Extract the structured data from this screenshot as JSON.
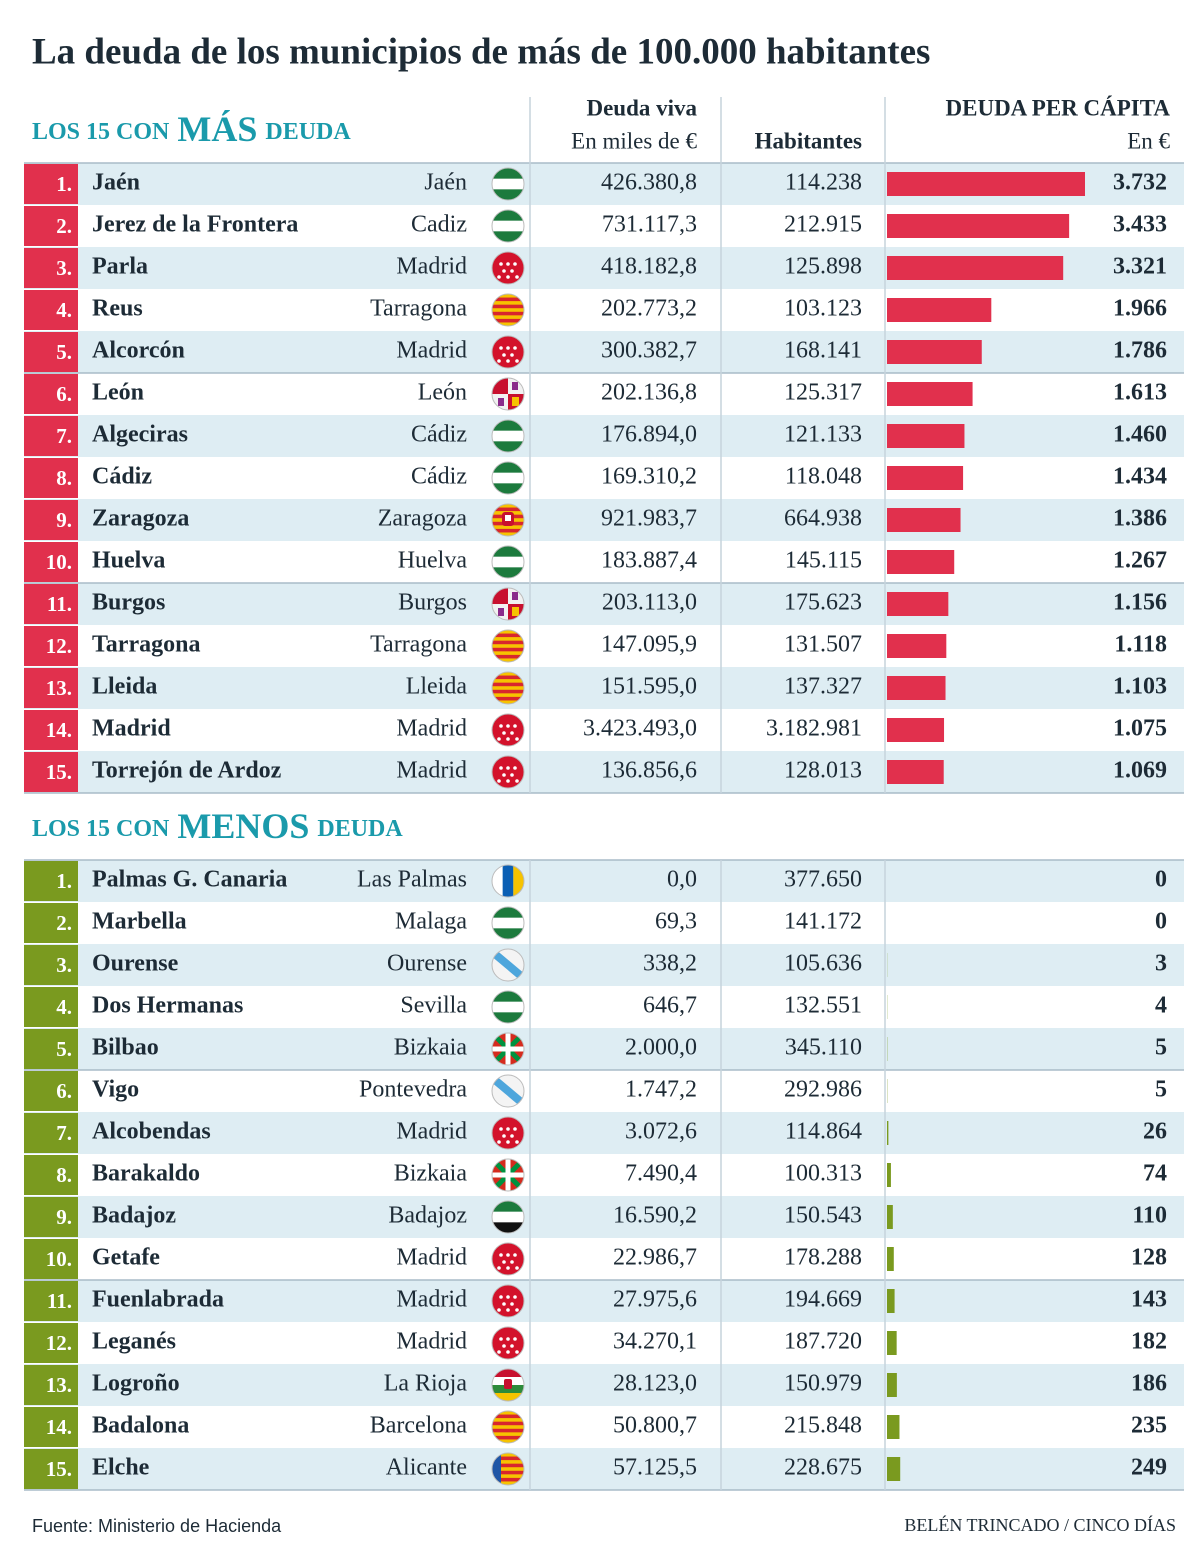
{
  "title": "La deuda de los municipios de más de 100.000 habitantes",
  "columns": {
    "debt": "Deuda viva",
    "debt_unit": "En miles de €",
    "population": "Habitantes",
    "per_capita": "DEUDA PER CÁPITA",
    "per_capita_unit": "En €"
  },
  "sections": [
    {
      "heading_prefix": "LOS 15 CON",
      "heading_key": "MÁS",
      "heading_suffix": "DEUDA",
      "color": "#e1304d",
      "ranks": [
        "1.",
        "2.",
        "3.",
        "4.",
        "5.",
        "6.",
        "7.",
        "8.",
        "9.",
        "10.",
        "11.",
        "12.",
        "13.",
        "14.",
        "15."
      ],
      "cities": [
        "Jaén",
        "Jerez de la Frontera",
        "Parla",
        "Reus",
        "Alcorcón",
        "León",
        "Algeciras",
        "Cádiz",
        "Zaragoza",
        "Huelva",
        "Burgos",
        "Tarragona",
        "Lleida",
        "Madrid",
        "Torrejón de Ardoz"
      ],
      "provinces": [
        "Jaén",
        "Cadiz",
        "Madrid",
        "Tarragona",
        "Madrid",
        "León",
        "Cádiz",
        "Cádiz",
        "Zaragoza",
        "Huelva",
        "Burgos",
        "Tarragona",
        "Lleida",
        "Madrid",
        "Madrid"
      ],
      "debt": [
        "426.380,8",
        "731.117,3",
        "418.182,8",
        "202.773,2",
        "300.382,7",
        "202.136,8",
        "176.894,0",
        "169.310,2",
        "921.983,7",
        "183.887,4",
        "203.113,0",
        "147.095,9",
        "151.595,0",
        "3.423.493,0",
        "136.856,6"
      ],
      "population": [
        "114.238",
        "212.915",
        "125.898",
        "103.123",
        "168.141",
        "125.317",
        "121.133",
        "118.048",
        "664.938",
        "145.115",
        "175.623",
        "131.507",
        "137.327",
        "3.182.981",
        "128.013"
      ],
      "per_capita": [
        3732,
        3433,
        3321,
        1966,
        1786,
        1613,
        1460,
        1434,
        1386,
        1267,
        1156,
        1118,
        1103,
        1075,
        1069
      ],
      "per_capita_labels": [
        "3.732",
        "3.433",
        "3.321",
        "1.966",
        "1.786",
        "1.613",
        "1.460",
        "1.434",
        "1.386",
        "1.267",
        "1.156",
        "1.118",
        "1.103",
        "1.075",
        "1.069"
      ]
    },
    {
      "heading_prefix": "LOS 15 CON",
      "heading_key": "MENOS",
      "heading_suffix": "DEUDA",
      "color": "#7a9a1f",
      "ranks": [
        "1.",
        "2.",
        "3.",
        "4.",
        "5.",
        "6.",
        "7.",
        "8.",
        "9.",
        "10.",
        "11.",
        "12.",
        "13.",
        "14.",
        "15."
      ],
      "cities": [
        "Palmas G. Canaria",
        "Marbella",
        "Ourense",
        "Dos Hermanas",
        "Bilbao",
        "Vigo",
        "Alcobendas",
        "Barakaldo",
        "Badajoz",
        "Getafe",
        "Fuenlabrada",
        "Leganés",
        "Logroño",
        "Badalona",
        "Elche"
      ],
      "provinces": [
        "Las Palmas",
        "Malaga",
        "Ourense",
        "Sevilla",
        "Bizkaia",
        "Pontevedra",
        "Madrid",
        "Bizkaia",
        "Badajoz",
        "Madrid",
        "Madrid",
        "Madrid",
        "La Rioja",
        "Barcelona",
        "Alicante"
      ],
      "debt": [
        "0,0",
        "69,3",
        "338,2",
        "646,7",
        "2.000,0",
        "1.747,2",
        "3.072,6",
        "7.490,4",
        "16.590,2",
        "22.986,7",
        "27.975,6",
        "34.270,1",
        "28.123,0",
        "50.800,7",
        "57.125,5"
      ],
      "population": [
        "377.650",
        "141.172",
        "105.636",
        "132.551",
        "345.110",
        "292.986",
        "114.864",
        "100.313",
        "150.543",
        "178.288",
        "194.669",
        "187.720",
        "150.979",
        "215.848",
        "228.675"
      ],
      "per_capita": [
        0,
        0,
        3,
        4,
        5,
        5,
        26,
        74,
        110,
        128,
        143,
        182,
        186,
        235,
        249
      ]
    }
  ],
  "source": "Fuente: Ministerio de Hacienda",
  "credit": "BELÉN TRINCADO / CINCO DÍAS"
}
